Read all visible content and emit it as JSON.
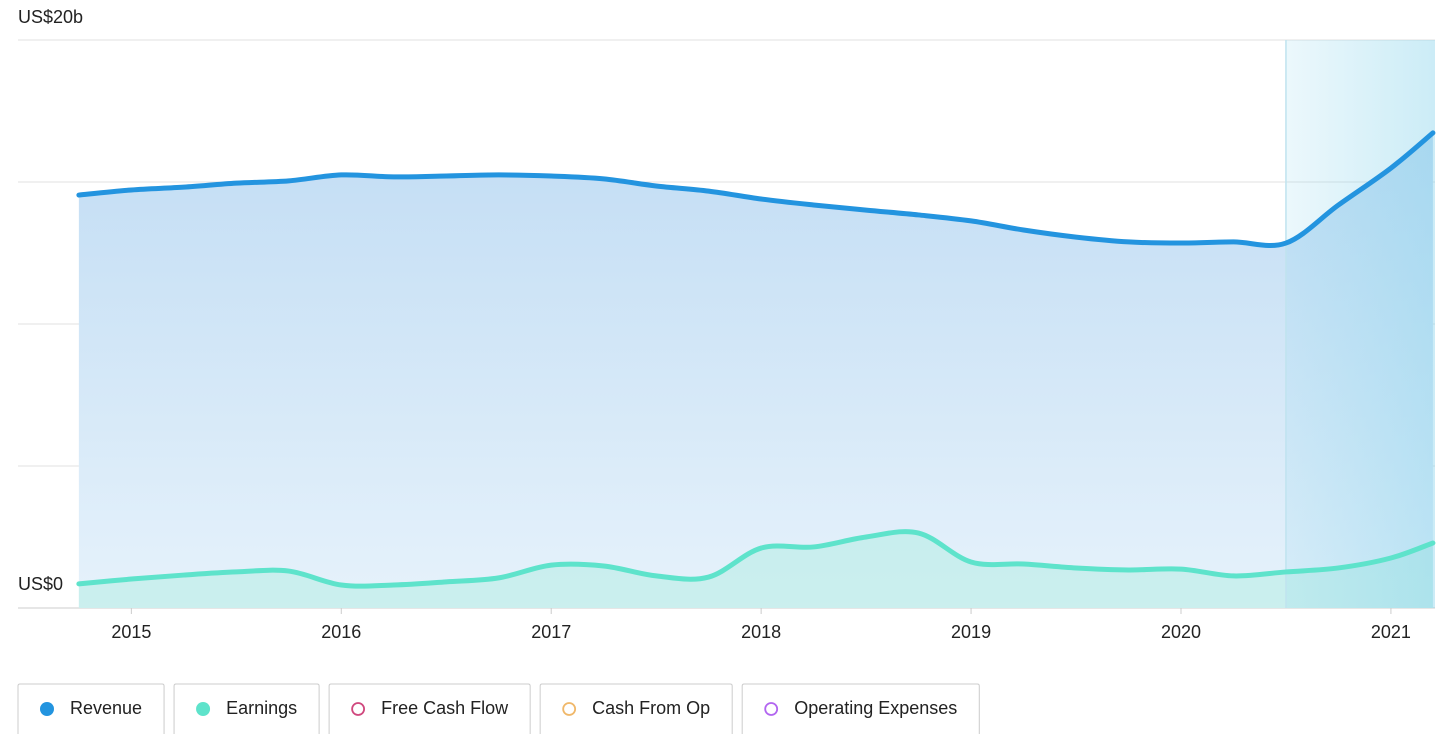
{
  "chart_data": {
    "type": "area",
    "x": [
      2014.75,
      2015.0,
      2015.25,
      2015.5,
      2015.75,
      2016.0,
      2016.25,
      2016.5,
      2016.75,
      2017.0,
      2017.25,
      2017.5,
      2017.75,
      2018.0,
      2018.25,
      2018.5,
      2018.75,
      2019.0,
      2019.25,
      2019.5,
      2019.75,
      2020.0,
      2020.25,
      2020.5,
      2020.75,
      2021.0,
      2021.2
    ],
    "series": [
      {
        "name": "Revenue",
        "color": "#2394df",
        "values": [
          14.54,
          14.72,
          14.82,
          14.96,
          15.04,
          15.25,
          15.18,
          15.21,
          15.25,
          15.21,
          15.11,
          14.86,
          14.68,
          14.4,
          14.19,
          14.01,
          13.84,
          13.63,
          13.31,
          13.06,
          12.89,
          12.85,
          12.89,
          12.85,
          14.19,
          15.49,
          16.73
        ]
      },
      {
        "name": "Earnings",
        "color": "#5ee3cb",
        "values": [
          0.85,
          1.02,
          1.16,
          1.27,
          1.3,
          0.81,
          0.81,
          0.92,
          1.06,
          1.51,
          1.48,
          1.13,
          1.09,
          2.11,
          2.15,
          2.5,
          2.64,
          1.62,
          1.55,
          1.41,
          1.34,
          1.37,
          1.13,
          1.27,
          1.41,
          1.76,
          2.29
        ]
      }
    ],
    "inactive_series": [
      {
        "name": "Free Cash Flow",
        "color": "#d0487e"
      },
      {
        "name": "Cash From Op",
        "color": "#f0b86a"
      },
      {
        "name": "Operating Expenses",
        "color": "#b266f0"
      }
    ],
    "xlim": [
      2014.46,
      2021.21
    ],
    "xticks": [
      2015,
      2016,
      2017,
      2018,
      2019,
      2020,
      2021
    ],
    "ylim": [
      0,
      20
    ],
    "yticks": [
      {
        "value": 0,
        "label": "US$0"
      },
      {
        "value": 20,
        "label": "US$20b"
      }
    ],
    "ygrid": [
      0,
      5,
      10,
      15,
      20
    ],
    "shaded_from": 2020.5
  }
}
